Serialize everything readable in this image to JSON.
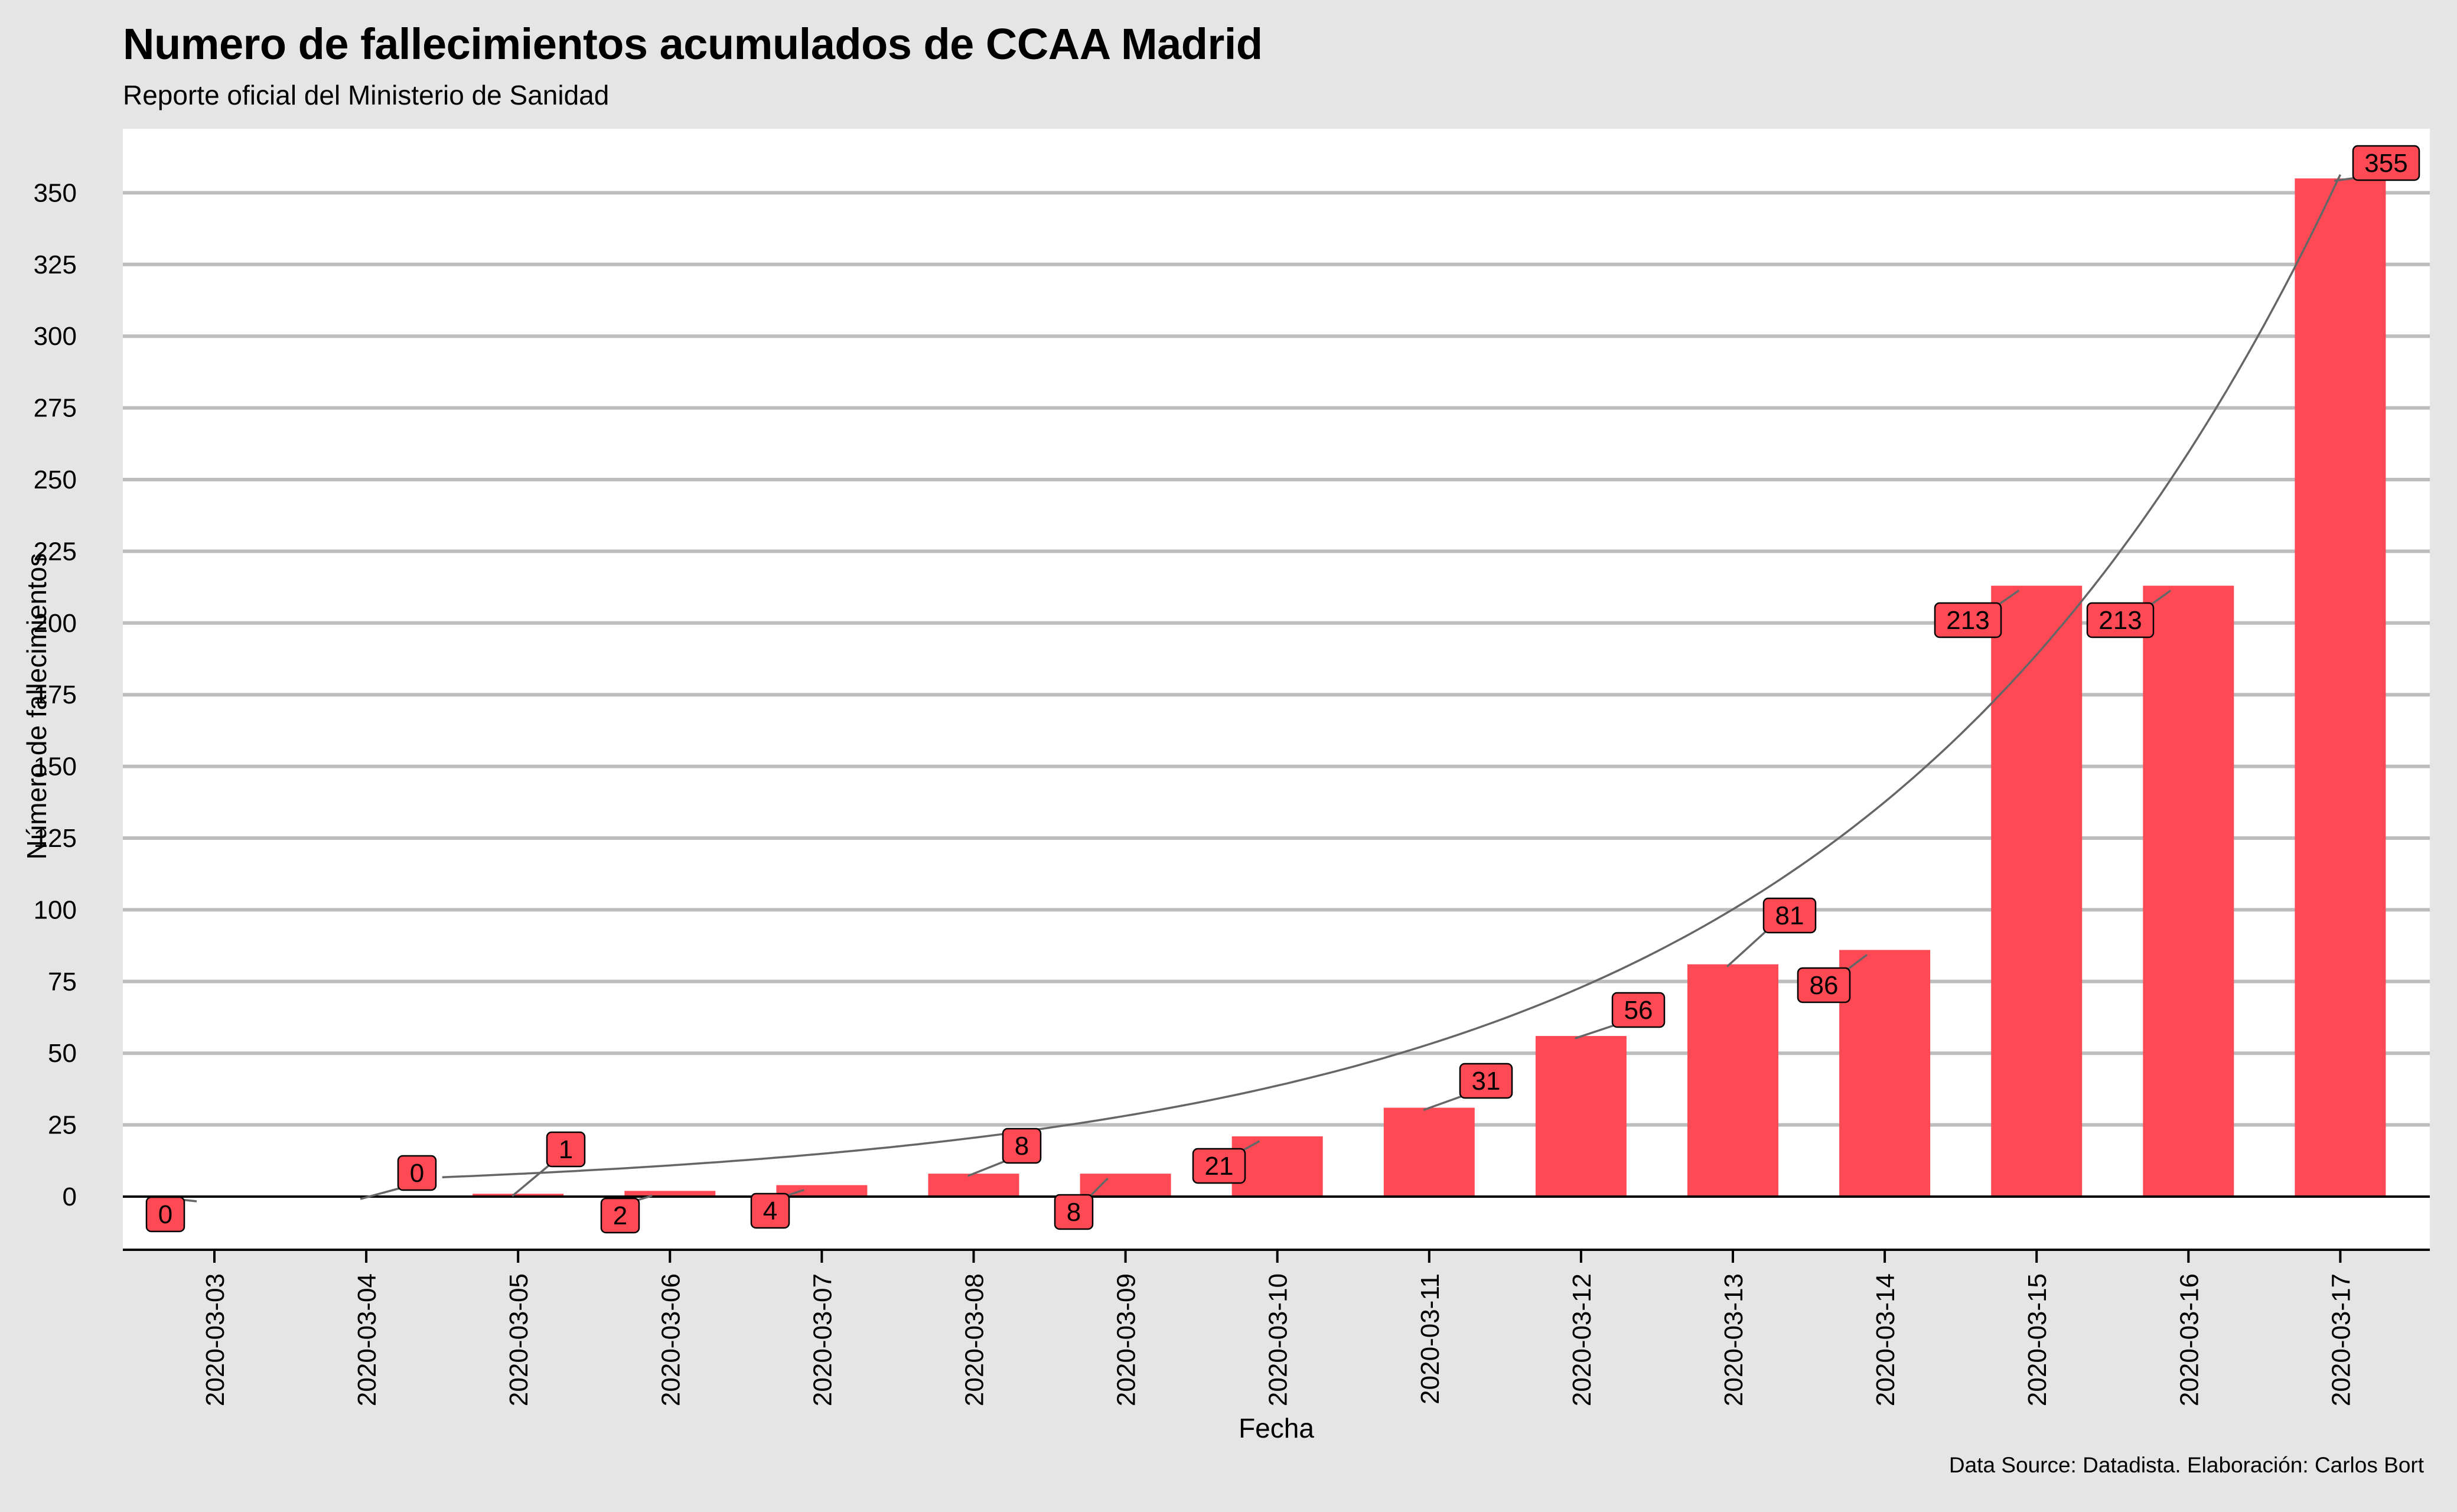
{
  "header": {
    "title": "Numero de fallecimientos acumulados de CCAA Madrid",
    "subtitle": "Reporte oficial del Ministerio de Sanidad"
  },
  "caption": "Data Source: Datadista. Elaboración: Carlos Bort",
  "colors": {
    "background": "#e5e5e5",
    "panel": "#ffffff",
    "bar": "#ff4a55",
    "grid": "#bdbdbd",
    "trend": "#666666"
  },
  "chart_data": {
    "type": "bar",
    "title": "Numero de fallecimientos acumulados de CCAA Madrid",
    "subtitle": "Reporte oficial del Ministerio de Sanidad",
    "xlabel": "Fecha",
    "ylabel": "Número de fallecimientos",
    "categories": [
      "2020-03-03",
      "2020-03-04",
      "2020-03-05",
      "2020-03-06",
      "2020-03-07",
      "2020-03-08",
      "2020-03-09",
      "2020-03-10",
      "2020-03-11",
      "2020-03-12",
      "2020-03-13",
      "2020-03-14",
      "2020-03-15",
      "2020-03-16",
      "2020-03-17"
    ],
    "values": [
      0,
      0,
      1,
      2,
      4,
      8,
      8,
      21,
      31,
      56,
      81,
      86,
      213,
      213,
      355
    ],
    "data_labels": [
      "0",
      "0",
      "1",
      "2",
      "4",
      "8",
      "8",
      "21",
      "31",
      "56",
      "81",
      "86",
      "213",
      "213",
      "355"
    ],
    "yticks": [
      0,
      25,
      50,
      75,
      100,
      125,
      150,
      175,
      200,
      225,
      250,
      275,
      300,
      325,
      350
    ],
    "ylim": [
      -18,
      375
    ],
    "grid": "horizontal",
    "trend_line": "exponential fit"
  }
}
